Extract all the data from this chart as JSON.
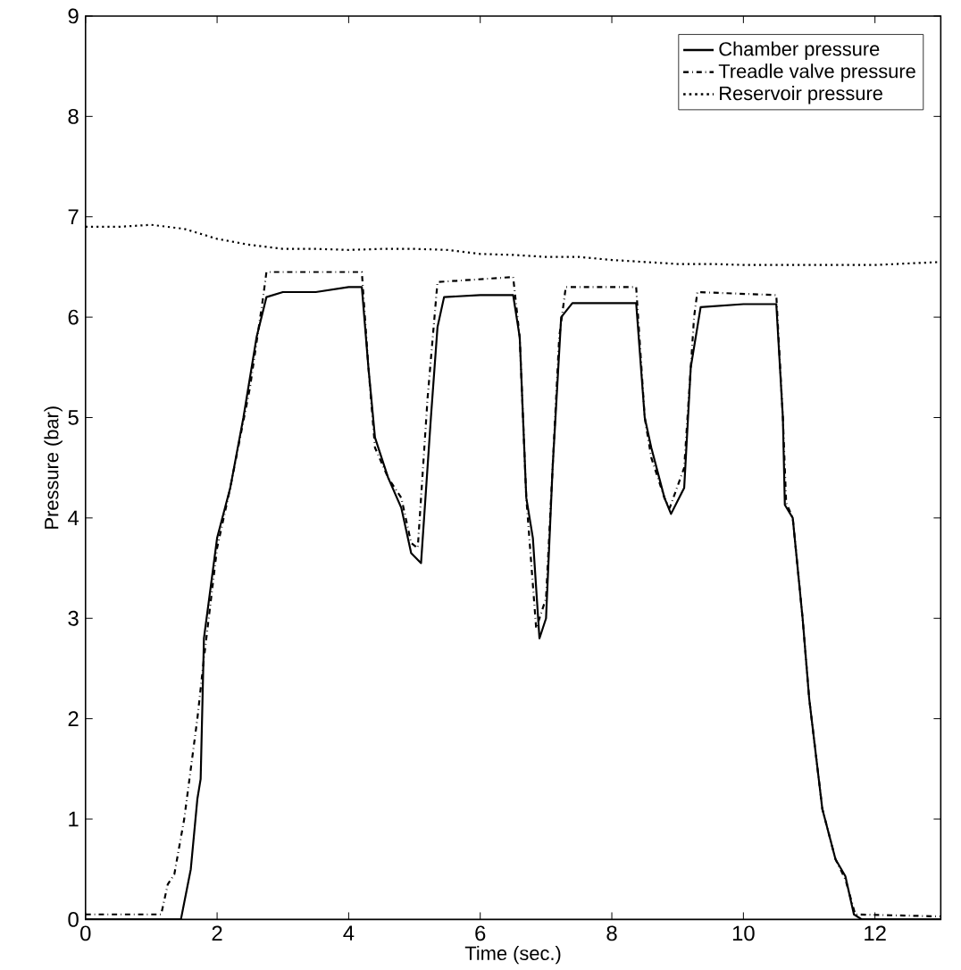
{
  "chart_data": {
    "type": "line",
    "xlabel": "Time (sec.)",
    "ylabel": "Pressure (bar)",
    "xlim": [
      0,
      13
    ],
    "ylim": [
      0,
      9
    ],
    "xticks": [
      0,
      2,
      4,
      6,
      8,
      10,
      12
    ],
    "yticks": [
      0,
      1,
      2,
      3,
      4,
      5,
      6,
      7,
      8,
      9
    ],
    "grid": false,
    "legend": "top right",
    "marker": "none",
    "series": [
      {
        "name": "Chamber pressure",
        "color": "#000000",
        "line_style": "solid",
        "x": [
          0,
          1.45,
          1.6,
          1.7,
          1.75,
          1.8,
          1.9,
          2.0,
          2.2,
          2.4,
          2.6,
          2.75,
          3.0,
          3.5,
          4.0,
          4.2,
          4.3,
          4.4,
          4.6,
          4.8,
          4.95,
          5.1,
          5.25,
          5.35,
          5.45,
          6.0,
          6.5,
          6.6,
          6.7,
          6.8,
          6.9,
          7.0,
          7.1,
          7.23,
          7.4,
          8.0,
          8.37,
          8.5,
          8.6,
          8.8,
          8.9,
          9.1,
          9.2,
          9.35,
          10.0,
          10.5,
          10.6,
          10.63,
          10.75,
          10.9,
          11.0,
          11.2,
          11.4,
          11.55,
          11.68,
          11.8,
          13
        ],
        "values": [
          0,
          0,
          0.5,
          1.2,
          1.4,
          2.8,
          3.3,
          3.8,
          4.3,
          5.0,
          5.8,
          6.2,
          6.25,
          6.25,
          6.3,
          6.3,
          5.5,
          4.8,
          4.4,
          4.1,
          3.65,
          3.55,
          5.0,
          5.9,
          6.2,
          6.22,
          6.22,
          5.8,
          4.2,
          3.8,
          2.8,
          3.0,
          4.5,
          6.0,
          6.14,
          6.14,
          6.14,
          5.0,
          4.7,
          4.2,
          4.04,
          4.3,
          5.5,
          6.1,
          6.13,
          6.13,
          5.0,
          4.13,
          4.0,
          3.0,
          2.2,
          1.1,
          0.6,
          0.43,
          0.05,
          0,
          0
        ]
      },
      {
        "name": "Treadle valve pressure",
        "color": "#000000",
        "line_style": "dashdot",
        "x": [
          0,
          1.15,
          1.25,
          1.35,
          1.5,
          1.7,
          1.8,
          2.0,
          2.2,
          2.5,
          2.7,
          2.75,
          4.2,
          4.3,
          4.4,
          4.6,
          4.8,
          4.95,
          5.05,
          5.2,
          5.35,
          6.5,
          6.6,
          6.7,
          6.85,
          7.0,
          7.2,
          7.3,
          8.37,
          8.5,
          8.6,
          8.8,
          8.88,
          9.1,
          9.25,
          9.3,
          10.5,
          10.6,
          10.65,
          10.75,
          10.9,
          11.0,
          11.2,
          11.4,
          11.55,
          11.7,
          13
        ],
        "values": [
          0.05,
          0.05,
          0.35,
          0.45,
          1.0,
          2.0,
          2.6,
          3.7,
          4.3,
          5.3,
          6.2,
          6.45,
          6.45,
          5.5,
          4.7,
          4.4,
          4.2,
          3.75,
          3.7,
          5.2,
          6.35,
          6.4,
          5.8,
          4.2,
          2.9,
          3.2,
          5.8,
          6.3,
          6.3,
          5.0,
          4.6,
          4.2,
          4.1,
          4.5,
          6.0,
          6.25,
          6.22,
          5.0,
          4.15,
          4.0,
          3.0,
          2.2,
          1.1,
          0.6,
          0.4,
          0.05,
          0.03
        ]
      },
      {
        "name": "Reservoir pressure",
        "color": "#000000",
        "line_style": "dotted",
        "x": [
          0,
          0.5,
          1.0,
          1.5,
          2.0,
          2.5,
          3.0,
          3.5,
          4.0,
          4.5,
          5.0,
          5.5,
          6.0,
          6.5,
          7.0,
          7.5,
          8.0,
          8.5,
          9.0,
          9.5,
          10.0,
          11.0,
          12.0,
          13
        ],
        "values": [
          6.9,
          6.9,
          6.92,
          6.88,
          6.78,
          6.72,
          6.68,
          6.68,
          6.67,
          6.68,
          6.68,
          6.67,
          6.63,
          6.62,
          6.6,
          6.6,
          6.57,
          6.55,
          6.53,
          6.53,
          6.52,
          6.52,
          6.52,
          6.55
        ]
      }
    ]
  }
}
